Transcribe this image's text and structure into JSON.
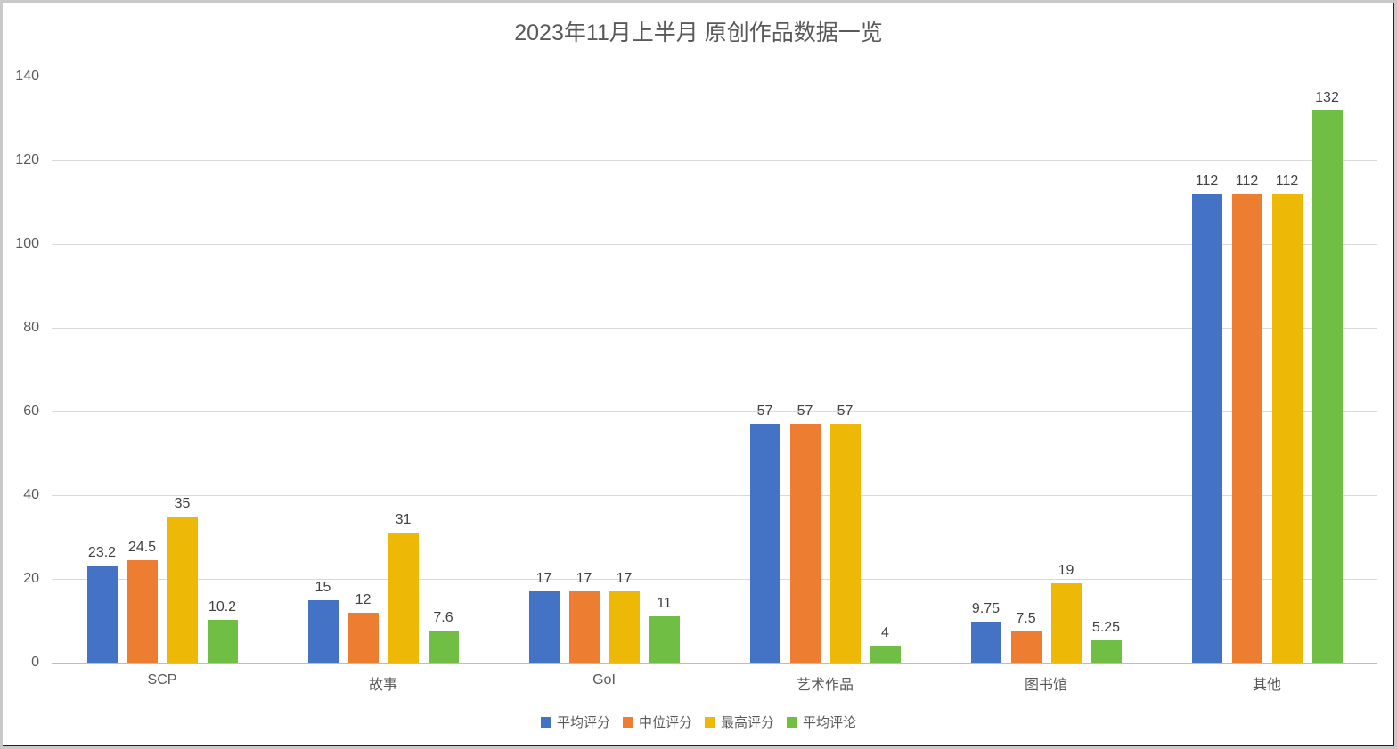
{
  "chart_data": {
    "type": "bar",
    "title": "2023年11月上半月 原创作品数据一览",
    "categories": [
      "SCP",
      "故事",
      "GoI",
      "艺术作品",
      "图书馆",
      "其他"
    ],
    "series": [
      {
        "name": "平均评分",
        "color": "#4472C4",
        "values": [
          23.2,
          15,
          17,
          57,
          9.75,
          112
        ]
      },
      {
        "name": "中位评分",
        "color": "#ED7D31",
        "values": [
          24.5,
          12,
          17,
          57,
          7.5,
          112
        ]
      },
      {
        "name": "最高评分",
        "color": "#EEB906",
        "values": [
          35,
          31,
          17,
          57,
          19,
          112
        ]
      },
      {
        "name": "平均评论",
        "color": "#71BE44",
        "values": [
          10.2,
          7.6,
          11,
          4,
          5.25,
          132
        ]
      }
    ],
    "ylim": [
      0,
      140
    ],
    "yticks": [
      0,
      20,
      40,
      60,
      80,
      100,
      120,
      140
    ],
    "grid": true,
    "data_labels": true,
    "legend_position": "bottom",
    "xlabel": "",
    "ylabel": "",
    "colors": {
      "title_text": "#595959",
      "axis_text": "#595959",
      "data_label_text": "#404040",
      "gridline": "#d9d9d9",
      "axis_line": "#bdbdbd",
      "background": "#ffffff"
    }
  }
}
